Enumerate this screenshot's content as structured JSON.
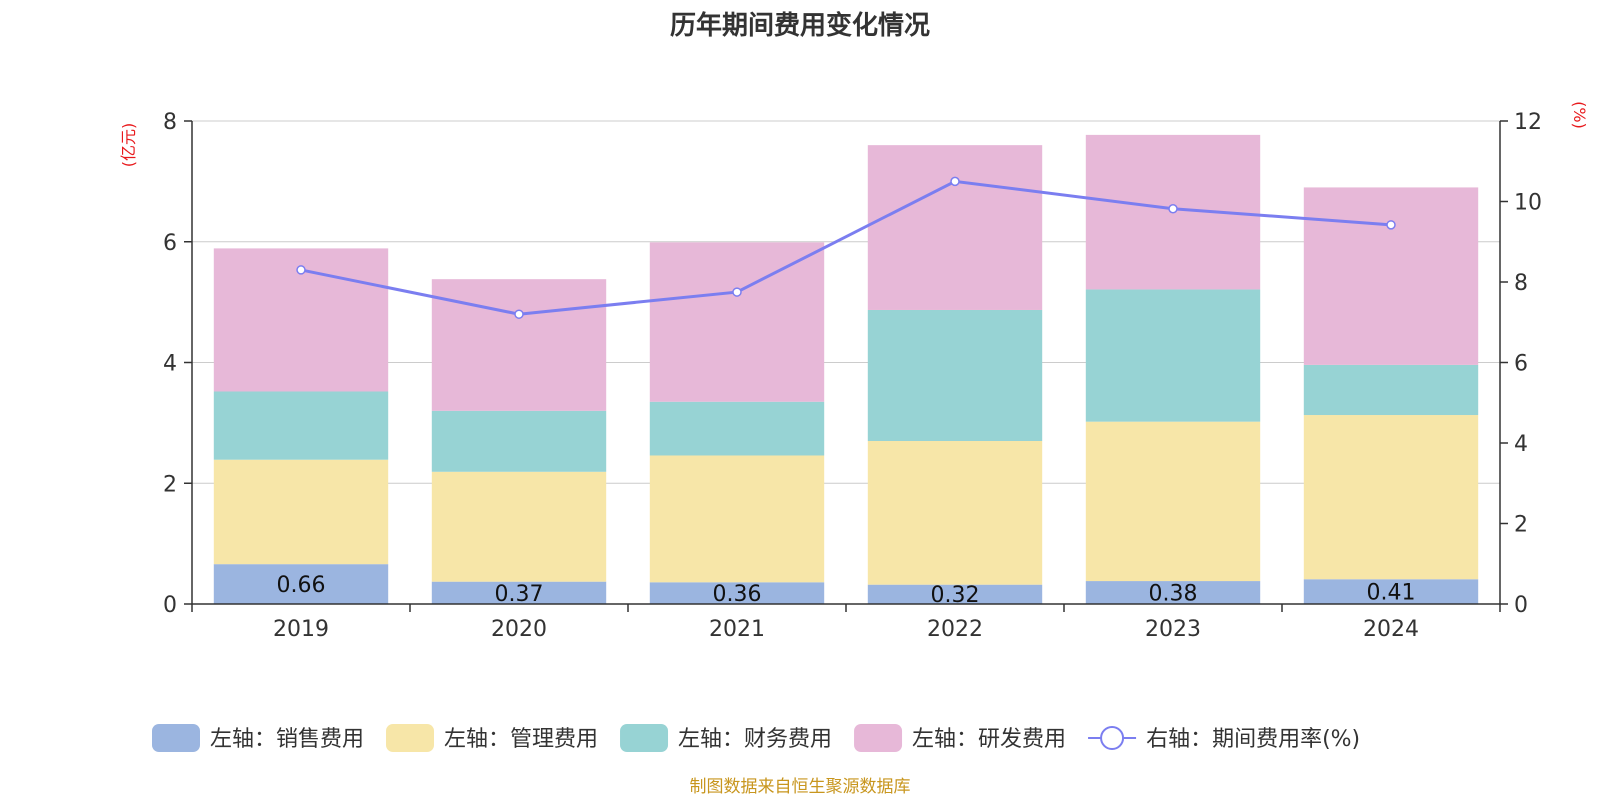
{
  "chart_data": {
    "type": "bar",
    "title": "历年期间费用变化情况",
    "categories": [
      "2019",
      "2020",
      "2021",
      "2022",
      "2023",
      "2024"
    ],
    "left_axis": {
      "unit": "(亿元)",
      "ylim": [
        0,
        8
      ],
      "ticks": [
        "0",
        "2",
        "4",
        "6",
        "8"
      ]
    },
    "right_axis": {
      "unit": "(%)",
      "ylim": [
        0,
        12
      ],
      "ticks": [
        "0",
        "2",
        "4",
        "6",
        "8",
        "10",
        "12"
      ]
    },
    "grid": true,
    "stacked": true,
    "series": [
      {
        "name": "左轴：销售费用",
        "type": "bar",
        "axis": "left",
        "color": "#9bb5e0",
        "values": [
          0.66,
          0.37,
          0.36,
          0.32,
          0.38,
          0.41
        ],
        "labels": [
          "0.66",
          "0.37",
          "0.36",
          "0.32",
          "0.38",
          "0.41"
        ]
      },
      {
        "name": "左轴：管理费用",
        "type": "bar",
        "axis": "left",
        "color": "#f7e6a8",
        "values": [
          1.73,
          1.82,
          2.1,
          2.38,
          2.64,
          2.72
        ]
      },
      {
        "name": "左轴：财务费用",
        "type": "bar",
        "axis": "left",
        "color": "#97d3d4",
        "values": [
          1.13,
          1.01,
          0.89,
          2.17,
          2.19,
          0.83
        ]
      },
      {
        "name": "左轴：研发费用",
        "type": "bar",
        "axis": "left",
        "color": "#e7b8d8",
        "values": [
          2.37,
          2.18,
          2.64,
          2.73,
          2.56,
          2.94
        ]
      },
      {
        "name": "右轴：期间费用率(%)",
        "type": "line",
        "axis": "right",
        "color": "#7b7ef0",
        "values": [
          8.3,
          7.2,
          7.75,
          10.5,
          9.82,
          9.42
        ]
      }
    ],
    "legend_position": "bottom-center",
    "source": "制图数据来自恒生聚源数据库"
  }
}
